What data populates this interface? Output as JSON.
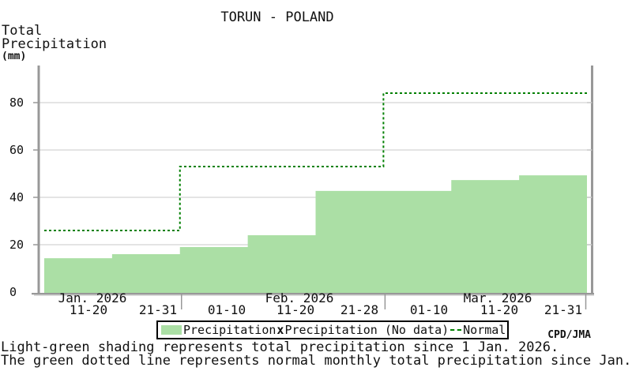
{
  "title": "TORUN - POLAND",
  "y_axis_label_lines": [
    "Total",
    "Precipitation",
    "(mm)"
  ],
  "attribution": "CPD/JMA",
  "legend": {
    "precipitation": "Precipitation",
    "no_data_marker": "x",
    "precipitation_no_data": "Precipitation (No data)",
    "normal": "Normal"
  },
  "footer": {
    "line1": "Light-green shading represents total precipitation since 1 Jan. 2026.",
    "line2": "The green dotted line represents normal monthly total precipitation since Jan."
  },
  "colors": {
    "precipitation_fill": "#abdfa5",
    "normal_line": "#008000",
    "axis": "#989898",
    "axis_shadow": "#c6c6c6",
    "gridline": "#d4d4d4",
    "text": "#111111"
  },
  "chart_data": {
    "type": "area",
    "title": "TORUN - POLAND",
    "ylabel": "Total Precipitation (mm)",
    "ylim": [
      0,
      95
    ],
    "y_ticks": [
      0,
      20,
      40,
      60,
      80
    ],
    "grid": true,
    "legend_position": "bottom",
    "months": [
      {
        "label": "Jan. 2026",
        "periods": [
          "11-20",
          "21-31"
        ]
      },
      {
        "label": "Feb. 2026",
        "periods": [
          "01-10",
          "11-20",
          "21-28"
        ]
      },
      {
        "label": "Mar. 2026",
        "periods": [
          "01-10",
          "11-20",
          "21-31"
        ]
      }
    ],
    "categories": [
      "Jan 11-20",
      "Jan 21-31",
      "Feb 01-10",
      "Feb 11-20",
      "Feb 21-28",
      "Mar 01-10",
      "Mar 11-20",
      "Mar 21-31"
    ],
    "series": [
      {
        "name": "Precipitation (cumulative total since 1 Jan. 2026, mm)",
        "style": "step-area",
        "values": [
          14.3,
          16,
          19,
          24,
          42.7,
          42.7,
          47.3,
          49.3
        ]
      },
      {
        "name": "Normal (cumulative monthly normal, mm)",
        "style": "step-dashed-line",
        "month_labels": [
          "Jan",
          "Feb",
          "Mar"
        ],
        "values": [
          26,
          53,
          84
        ]
      }
    ]
  }
}
